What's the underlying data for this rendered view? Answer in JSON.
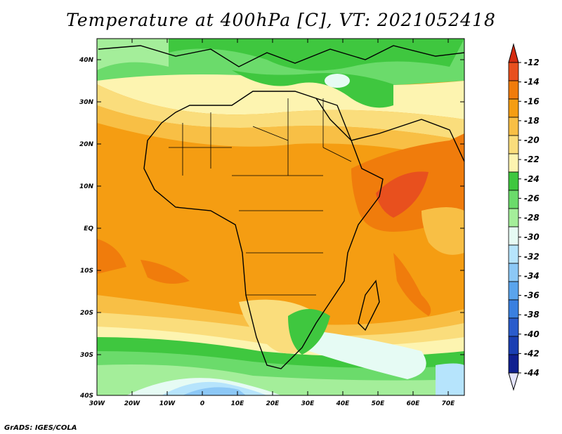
{
  "title": "Temperature at 400hPa [C], VT: 2021052418",
  "credit": "GrADS: IGES/COLA",
  "map": {
    "lon_labels": [
      "30W",
      "20W",
      "10W",
      "0",
      "10E",
      "20E",
      "30E",
      "40E",
      "50E",
      "60E",
      "70E"
    ],
    "lat_labels": [
      "40N",
      "30N",
      "20N",
      "10N",
      "EQ",
      "10S",
      "20S",
      "30S",
      "40S"
    ]
  },
  "colorbar": {
    "labels": [
      "-12",
      "-14",
      "-16",
      "-18",
      "-20",
      "-22",
      "-24",
      "-26",
      "-28",
      "-30",
      "-32",
      "-34",
      "-36",
      "-38",
      "-40",
      "-42",
      "-44"
    ],
    "colors": [
      "#e8501e",
      "#f07c0c",
      "#f59d12",
      "#f8bf45",
      "#fadd7c",
      "#fdf4b0",
      "#3fc73f",
      "#6bdb6b",
      "#a4ee9a",
      "#e6fbf4",
      "#b6e4fc",
      "#8cc8f6",
      "#5aa4ec",
      "#3a80e0",
      "#2a5ccc",
      "#1a3fb2",
      "#102090"
    ],
    "top_arrow_color": "#d42b10",
    "bottom_arrow_color": "#e4e4ff"
  }
}
